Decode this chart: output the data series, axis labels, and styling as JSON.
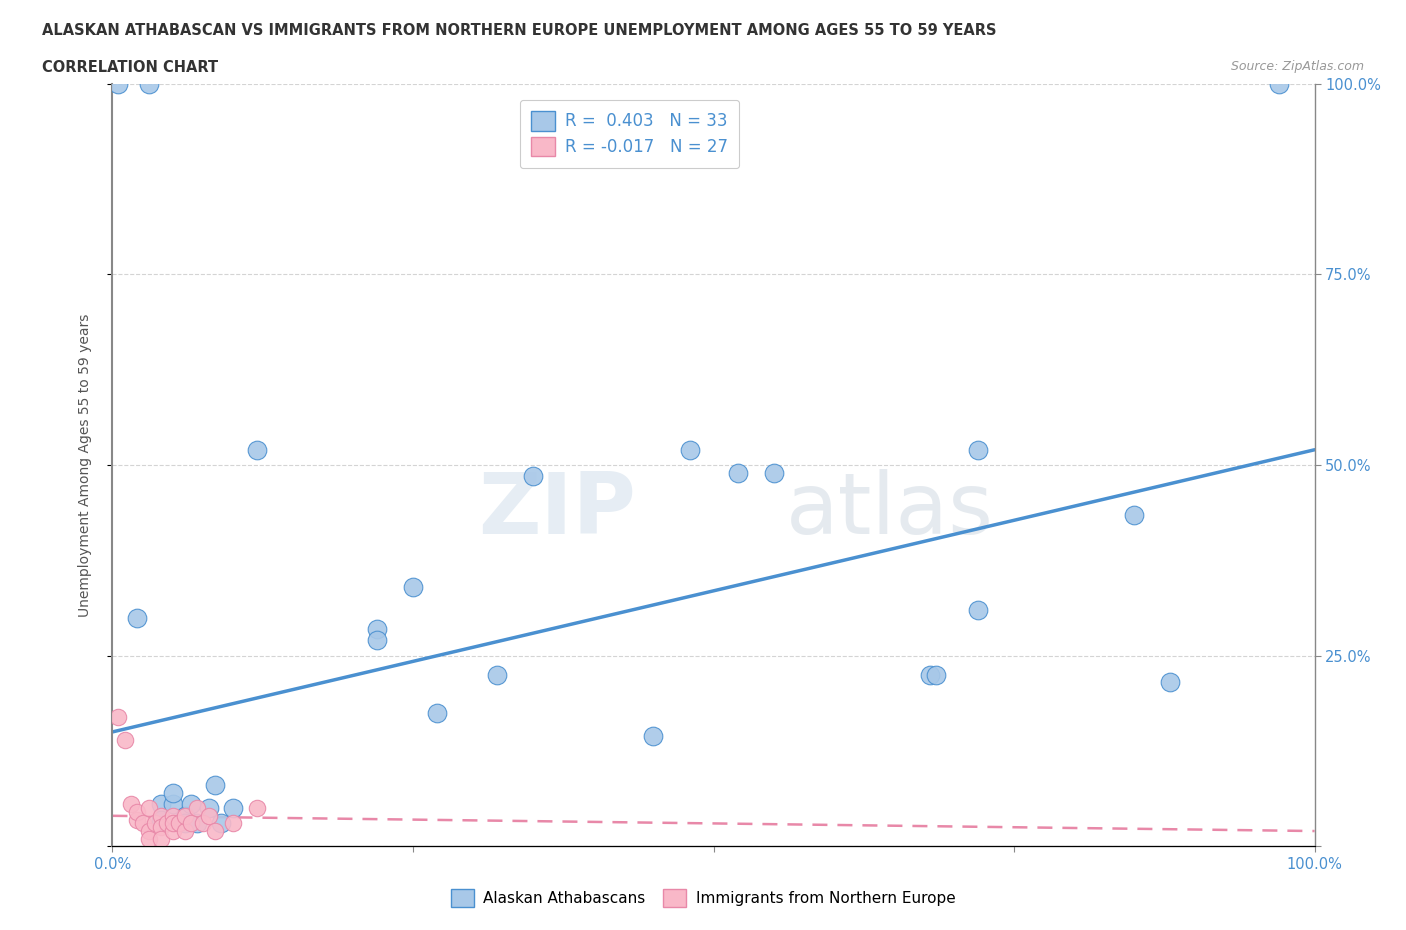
{
  "title_line1": "ALASKAN ATHABASCAN VS IMMIGRANTS FROM NORTHERN EUROPE UNEMPLOYMENT AMONG AGES 55 TO 59 YEARS",
  "title_line2": "CORRELATION CHART",
  "source": "Source: ZipAtlas.com",
  "ylabel": "Unemployment Among Ages 55 to 59 years",
  "watermark": "ZIPatlas",
  "legend_r1": "R =  0.403   N = 33",
  "legend_r2": "R = -0.017   N = 27",
  "blue_color": "#a8c8e8",
  "pink_color": "#f9b8c8",
  "line_blue": "#4a90d0",
  "line_pink": "#e888a8",
  "blue_scatter": [
    [
      0.005,
      1.0
    ],
    [
      0.03,
      1.0
    ],
    [
      0.97,
      1.0
    ],
    [
      0.12,
      0.52
    ],
    [
      0.22,
      0.285
    ],
    [
      0.22,
      0.27
    ],
    [
      0.25,
      0.34
    ],
    [
      0.27,
      0.175
    ],
    [
      0.32,
      0.225
    ],
    [
      0.35,
      0.485
    ],
    [
      0.45,
      0.145
    ],
    [
      0.48,
      0.52
    ],
    [
      0.52,
      0.49
    ],
    [
      0.55,
      0.49
    ],
    [
      0.68,
      0.225
    ],
    [
      0.685,
      0.225
    ],
    [
      0.72,
      0.52
    ],
    [
      0.72,
      0.31
    ],
    [
      0.85,
      0.435
    ],
    [
      0.88,
      0.215
    ],
    [
      0.02,
      0.3
    ],
    [
      0.04,
      0.055
    ],
    [
      0.04,
      0.035
    ],
    [
      0.05,
      0.055
    ],
    [
      0.05,
      0.07
    ],
    [
      0.06,
      0.04
    ],
    [
      0.06,
      0.03
    ],
    [
      0.065,
      0.055
    ],
    [
      0.07,
      0.03
    ],
    [
      0.08,
      0.05
    ],
    [
      0.085,
      0.08
    ],
    [
      0.09,
      0.03
    ],
    [
      0.1,
      0.05
    ]
  ],
  "pink_scatter": [
    [
      0.005,
      0.17
    ],
    [
      0.01,
      0.14
    ],
    [
      0.015,
      0.055
    ],
    [
      0.02,
      0.035
    ],
    [
      0.02,
      0.045
    ],
    [
      0.025,
      0.03
    ],
    [
      0.03,
      0.05
    ],
    [
      0.03,
      0.02
    ],
    [
      0.03,
      0.01
    ],
    [
      0.035,
      0.03
    ],
    [
      0.04,
      0.04
    ],
    [
      0.04,
      0.025
    ],
    [
      0.04,
      0.01
    ],
    [
      0.045,
      0.03
    ],
    [
      0.05,
      0.04
    ],
    [
      0.05,
      0.02
    ],
    [
      0.05,
      0.03
    ],
    [
      0.055,
      0.03
    ],
    [
      0.06,
      0.02
    ],
    [
      0.06,
      0.04
    ],
    [
      0.065,
      0.03
    ],
    [
      0.07,
      0.05
    ],
    [
      0.075,
      0.03
    ],
    [
      0.08,
      0.04
    ],
    [
      0.085,
      0.02
    ],
    [
      0.1,
      0.03
    ],
    [
      0.12,
      0.05
    ]
  ],
  "blue_line_x": [
    0.0,
    1.0
  ],
  "blue_line_y": [
    0.15,
    0.52
  ],
  "pink_line_x": [
    0.0,
    1.0
  ],
  "pink_line_y": [
    0.04,
    0.02
  ],
  "xlim": [
    0.0,
    1.0
  ],
  "ylim": [
    0.0,
    1.0
  ],
  "xticks": [
    0.0,
    0.25,
    0.5,
    0.75,
    1.0
  ],
  "xticklabels": [
    "0.0%",
    "",
    "",
    "",
    "100.0%"
  ],
  "yticks": [
    0.0,
    0.25,
    0.5,
    0.75,
    1.0
  ],
  "yticklabels_right": [
    "",
    "25.0%",
    "50.0%",
    "75.0%",
    "100.0%"
  ],
  "bg_color": "#ffffff",
  "grid_color": "#d0d0d0",
  "title_color": "#333333",
  "tick_color": "#4a90d0",
  "ylabel_color": "#555555"
}
